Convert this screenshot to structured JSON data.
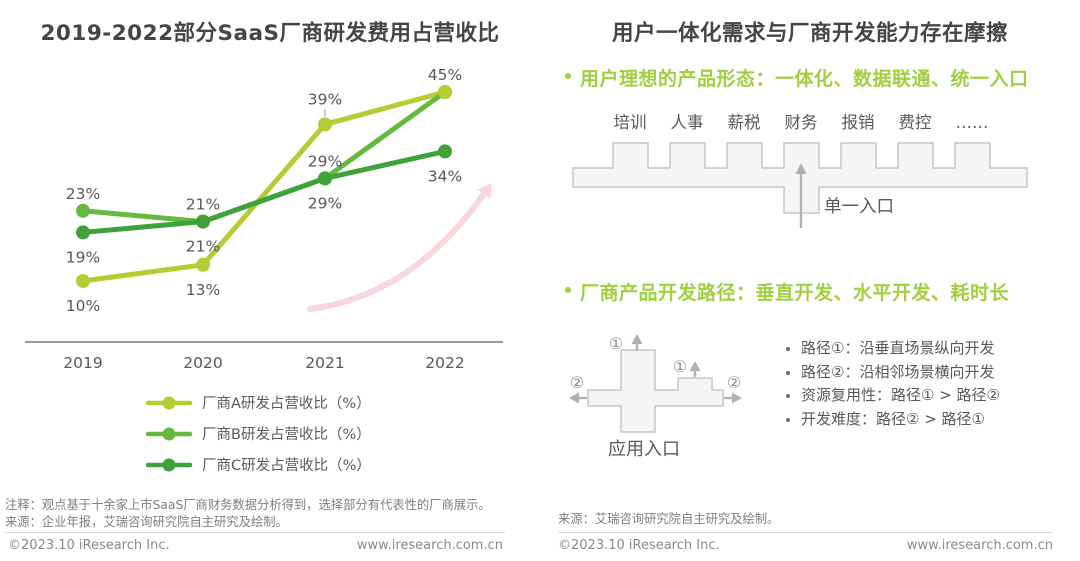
{
  "colors": {
    "series_a": "#b5cd32",
    "series_b": "#66b93f",
    "series_c": "#3fa139",
    "headline_green": "#a0d03f",
    "trend_arrow_pink": "#f8d7dd",
    "text_gray": "#595959",
    "diagram_fill": "#f5f5f5",
    "diagram_stroke": "#c7c7c7",
    "arrow_gray": "#b1b1b1"
  },
  "chart_data": {
    "type": "line",
    "title": "2019-2022部分SaaS厂商研发费用占营收比",
    "categories": [
      "2019",
      "2020",
      "2021",
      "2022"
    ],
    "series": [
      {
        "name": "厂商A研发占营收比（%）",
        "values": [
          10,
          13,
          39,
          45
        ],
        "color": "#b5cd32",
        "label_side": [
          "below",
          "below",
          "above_far",
          "above"
        ]
      },
      {
        "name": "厂商B研发占营收比（%）",
        "values": [
          23,
          21,
          29,
          45
        ],
        "color": "#66b93f",
        "label_side": [
          "above",
          "above",
          "above",
          "none"
        ]
      },
      {
        "name": "厂商C研发占营收比（%）",
        "values": [
          19,
          21,
          29,
          34
        ],
        "color": "#3fa139",
        "label_side": [
          "below",
          "below",
          "below",
          "below"
        ]
      }
    ],
    "data_label_suffix": "%",
    "ylim": [
      0,
      52
    ],
    "grid": false,
    "legend_position": "bottom-left",
    "decoration": "light pink rising trend arrow behind lines"
  },
  "left": {
    "note": "注释：观点基于十余家上市SaaS厂商财务数据分析得到，选择部分有代表性的厂商展示。",
    "source": "来源：企业年报，艾瑞咨询研究院自主研究及绘制。",
    "footer": {
      "copyright": "©2023.10 iResearch Inc.",
      "website": "www.iresearch.com.cn"
    }
  },
  "right": {
    "title": "用户一体化需求与厂商开发能力存在摩擦",
    "bullet1": "用户理想的产品形态：一体化、数据联通、统一入口",
    "modules": [
      "培训",
      "人事",
      "薪税",
      "财务",
      "报销",
      "费控",
      "……"
    ],
    "single_entry_label": "单一入口",
    "bullet2": "厂商产品开发路径：垂直开发、水平开发、耗时长",
    "circle1": "①",
    "circle2": "②",
    "app_entry_label": "应用入口",
    "list": [
      "路径①：沿垂直场景纵向开发",
      "路径②：沿相邻场景横向开发",
      "资源复用性：路径① > 路径②",
      "开发难度：路径② > 路径①"
    ],
    "source": "来源：艾瑞咨询研究院自主研究及绘制。",
    "footer": {
      "copyright": "©2023.10 iResearch Inc.",
      "website": "www.iresearch.com.cn"
    }
  }
}
